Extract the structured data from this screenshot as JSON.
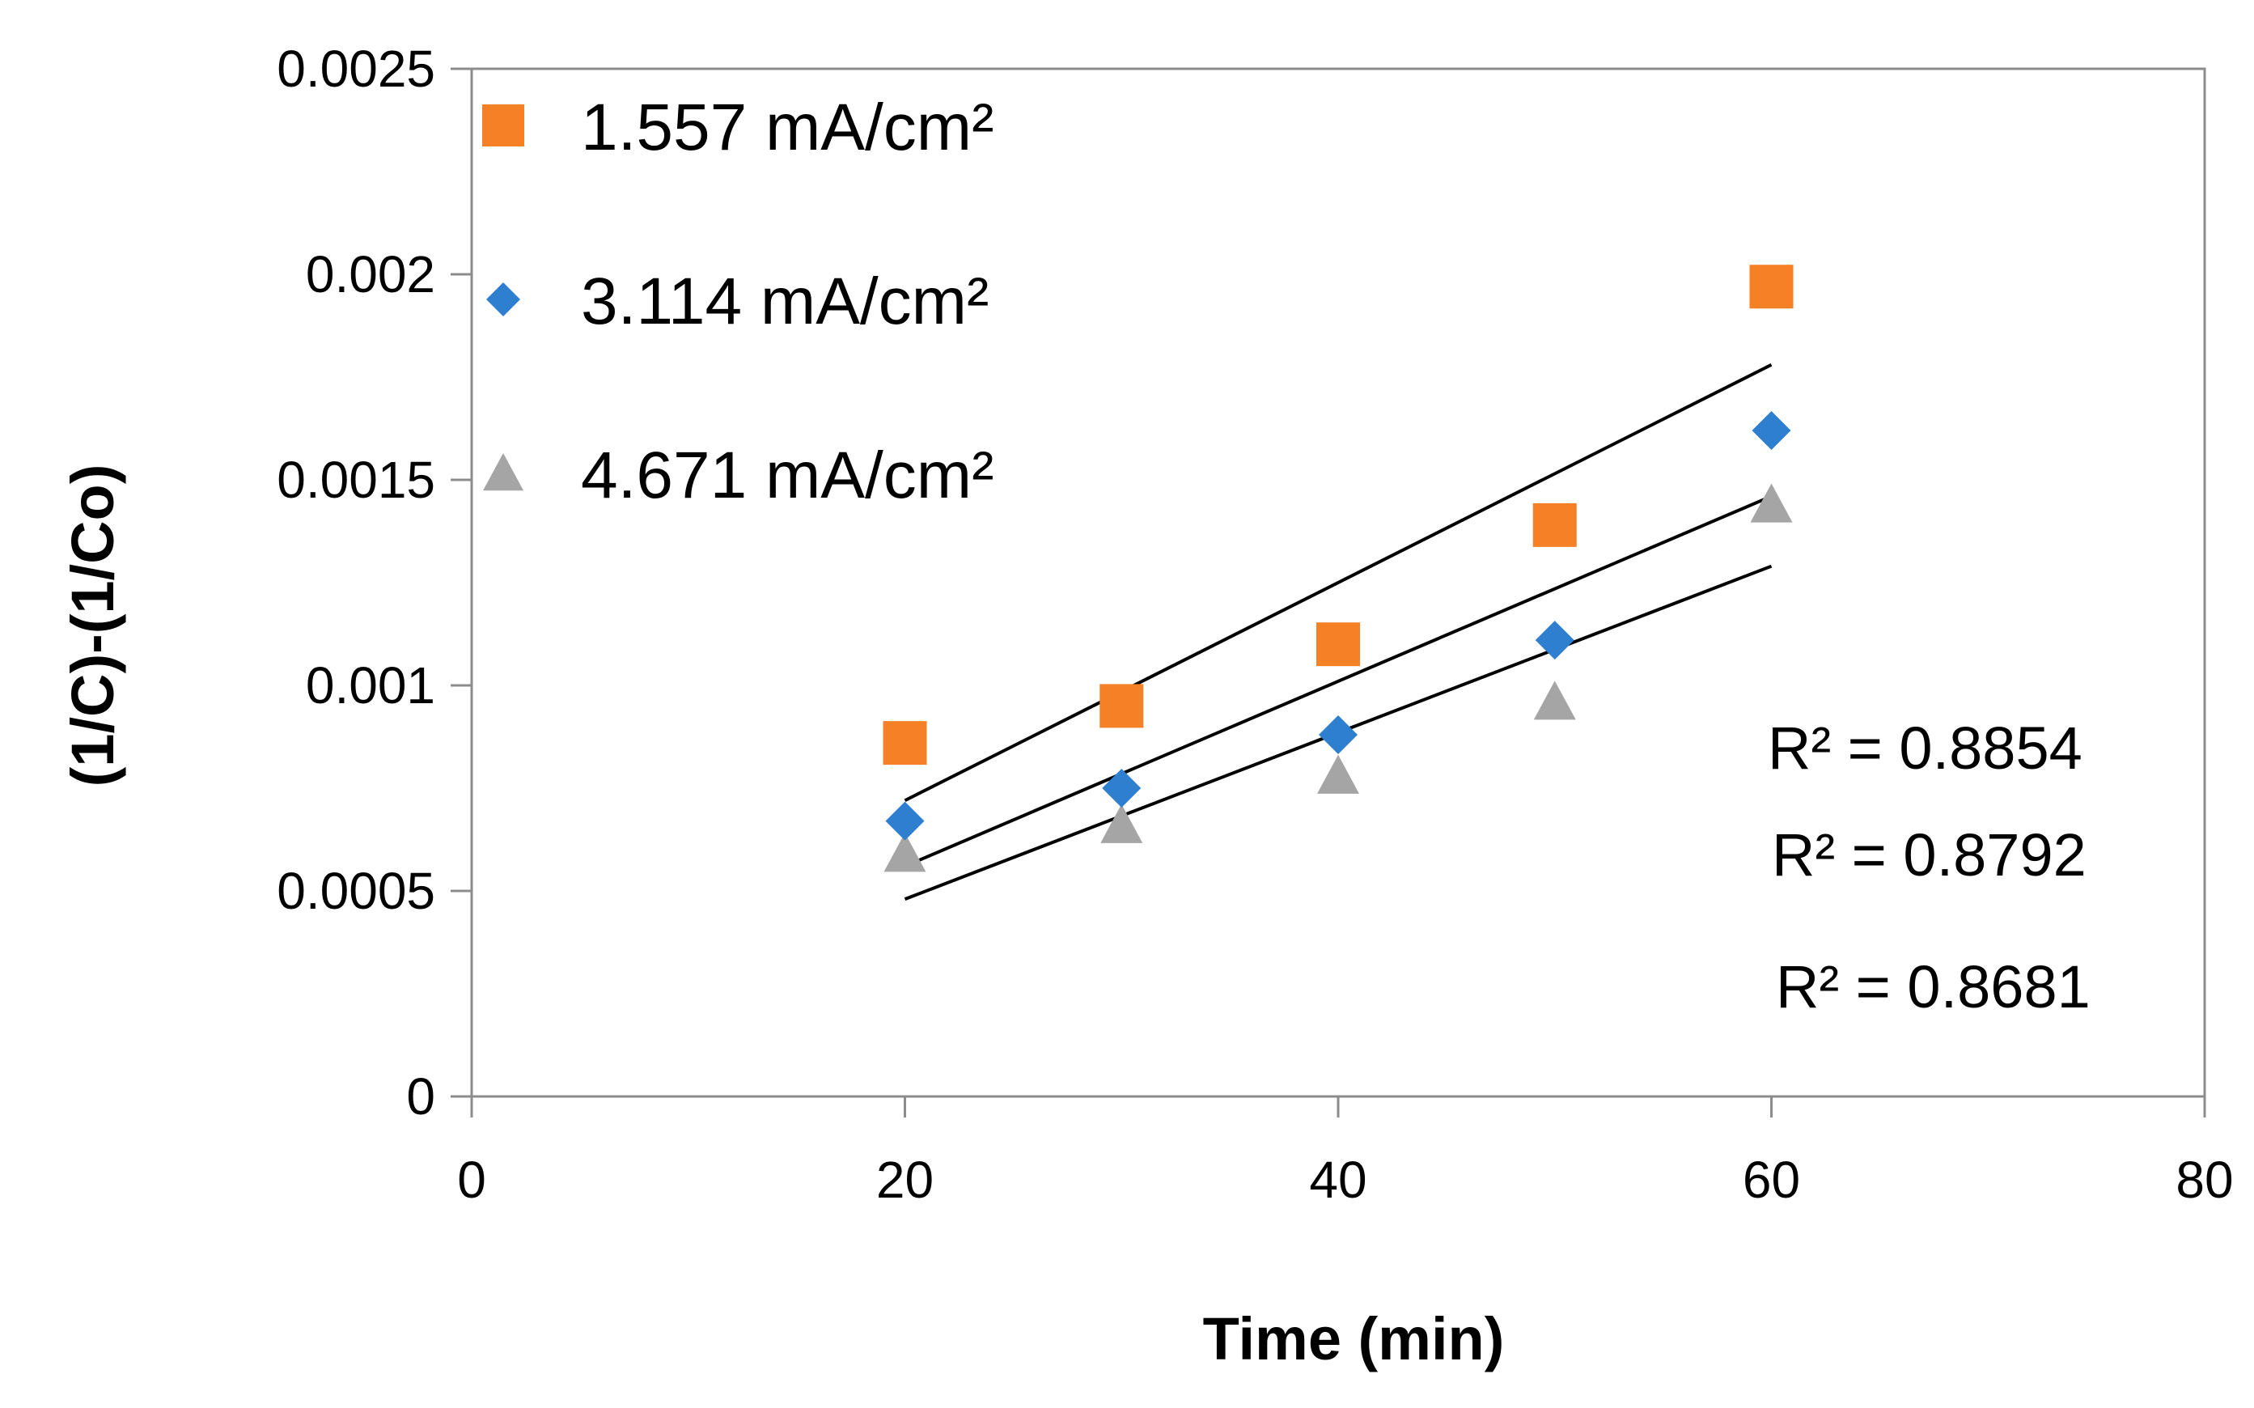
{
  "chart_data": {
    "type": "scatter",
    "title": "",
    "xlabel": "Time (min)",
    "ylabel": "(1/C)-(1/Co)",
    "xlim": [
      0,
      80
    ],
    "ylim": [
      0,
      0.0025
    ],
    "x_ticks": [
      0,
      20,
      40,
      60,
      80
    ],
    "x_tick_labels": [
      "0",
      "20",
      "40",
      "60",
      "80"
    ],
    "y_ticks": [
      0,
      0.0005,
      0.001,
      0.0015,
      0.002,
      0.0025
    ],
    "y_tick_labels": [
      "0",
      "0.0005",
      "0.001",
      "0.0015",
      "0.002",
      "0.0025"
    ],
    "grid": false,
    "legend_position": "top-left",
    "series": [
      {
        "name": "1.557 mA/cm²",
        "marker": "square",
        "color": "#F58025",
        "x": [
          20,
          30,
          40,
          50,
          60
        ],
        "y": [
          0.00086,
          0.00095,
          0.0011,
          0.00139,
          0.00197
        ],
        "trendline": {
          "x": [
            20,
            60
          ],
          "y": [
            0.00072,
            0.00178
          ]
        },
        "r2_label": "R² = 0.8854"
      },
      {
        "name": "3.114 mA/cm²",
        "marker": "diamond",
        "color": "#2F7FD0",
        "x": [
          20,
          30,
          40,
          50,
          60
        ],
        "y": [
          0.00067,
          0.00075,
          0.00088,
          0.00111,
          0.00162
        ],
        "trendline": {
          "x": [
            20,
            60
          ],
          "y": [
            0.00056,
            0.00146
          ]
        },
        "r2_label": "R² = 0.8792"
      },
      {
        "name": "4.671 mA/cm²",
        "marker": "triangle",
        "color": "#A5A5A5",
        "x": [
          20,
          30,
          40,
          50,
          60
        ],
        "y": [
          0.00059,
          0.00066,
          0.00078,
          0.00096,
          0.00144
        ],
        "trendline": {
          "x": [
            20,
            60
          ],
          "y": [
            0.00048,
            0.00129
          ]
        },
        "r2_label": "R² = 0.8681"
      }
    ]
  }
}
